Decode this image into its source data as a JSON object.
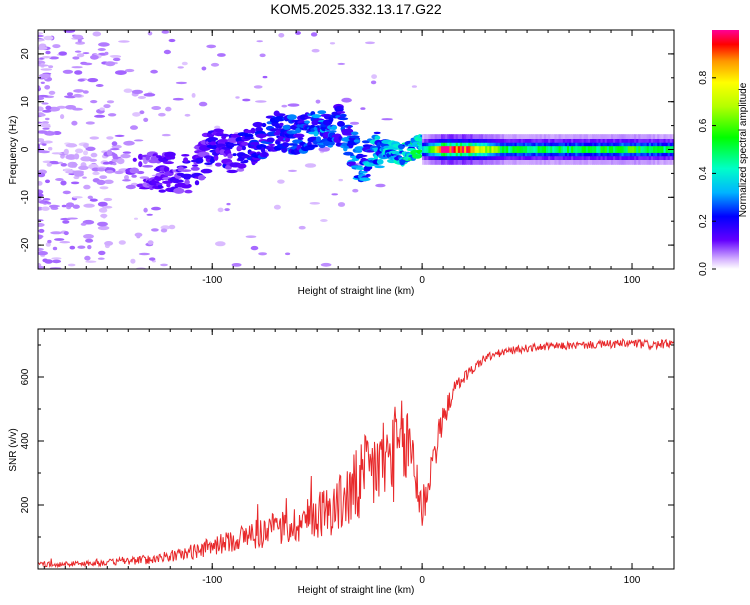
{
  "title": "KOM5.2025.332.13.17.G22",
  "colors": {
    "snr_line": "#e8282a",
    "axis": "#000000"
  },
  "chart_data": [
    {
      "type": "heatmap",
      "xlabel": "Height of straight line (km)",
      "ylabel": "Frequency (Hz)",
      "xlim": [
        -183,
        120
      ],
      "ylim": [
        -25,
        25
      ],
      "xticks": [
        -100,
        0,
        100
      ],
      "xtick_labels": [
        "-100",
        "0",
        "100"
      ],
      "yticks": [
        -20,
        -10,
        0,
        10,
        20
      ],
      "ytick_labels": [
        "-20",
        "-10",
        "0",
        "10",
        "20"
      ],
      "colorbar": {
        "label": "Normalized spectral amplitude",
        "range": [
          0,
          1
        ],
        "ticks": [
          0.0,
          0.2,
          0.4,
          0.6,
          0.8
        ],
        "tick_labels": [
          "0.0",
          "0.2",
          "0.4",
          "0.6",
          "0.8"
        ]
      },
      "ridge": {
        "x": [
          -180,
          -160,
          -140,
          -125,
          -110,
          -100,
          -90,
          -80,
          -70,
          -60,
          -50,
          -40,
          -30,
          -20,
          -10,
          0,
          10,
          20,
          40,
          60,
          80,
          100,
          120
        ],
        "freq": [
          -2,
          -3,
          -4,
          -5,
          -5,
          1,
          -1,
          1,
          4,
          3,
          4,
          5,
          -3,
          0,
          -1,
          1,
          0,
          0,
          0,
          0,
          0,
          0,
          0
        ],
        "amplitude": [
          0.03,
          0.04,
          0.08,
          0.12,
          0.12,
          0.15,
          0.15,
          0.18,
          0.2,
          0.22,
          0.25,
          0.22,
          0.25,
          0.3,
          0.32,
          0.4,
          0.95,
          0.95,
          0.5,
          0.5,
          0.5,
          0.55,
          0.45
        ]
      }
    },
    {
      "type": "line",
      "xlabel": "Height of straight line (km)",
      "ylabel": "SNR (v/v)",
      "xlim": [
        -183,
        120
      ],
      "ylim": [
        0,
        750
      ],
      "xticks": [
        -100,
        0,
        100
      ],
      "xtick_labels": [
        "-100",
        "0",
        "100"
      ],
      "yticks": [
        200,
        400,
        600
      ],
      "ytick_labels": [
        "200",
        "400",
        "600"
      ],
      "series": [
        {
          "name": "SNR",
          "x": [
            -183,
            -170,
            -150,
            -130,
            -115,
            -100,
            -90,
            -80,
            -70,
            -60,
            -50,
            -40,
            -30,
            -25,
            -20,
            -15,
            -10,
            -5,
            0,
            5,
            10,
            15,
            20,
            25,
            30,
            40,
            50,
            60,
            80,
            100,
            110,
            120
          ],
          "y": [
            15,
            15,
            20,
            30,
            45,
            70,
            90,
            110,
            120,
            140,
            170,
            200,
            260,
            300,
            330,
            350,
            380,
            380,
            180,
            340,
            470,
            560,
            600,
            630,
            660,
            680,
            690,
            695,
            700,
            705,
            700,
            705
          ],
          "noise_amplitude": [
            8,
            8,
            10,
            15,
            20,
            30,
            35,
            50,
            55,
            60,
            75,
            90,
            130,
            140,
            150,
            150,
            150,
            140,
            80,
            70,
            40,
            25,
            20,
            15,
            15,
            12,
            12,
            12,
            12,
            15,
            15,
            12
          ]
        }
      ]
    }
  ]
}
